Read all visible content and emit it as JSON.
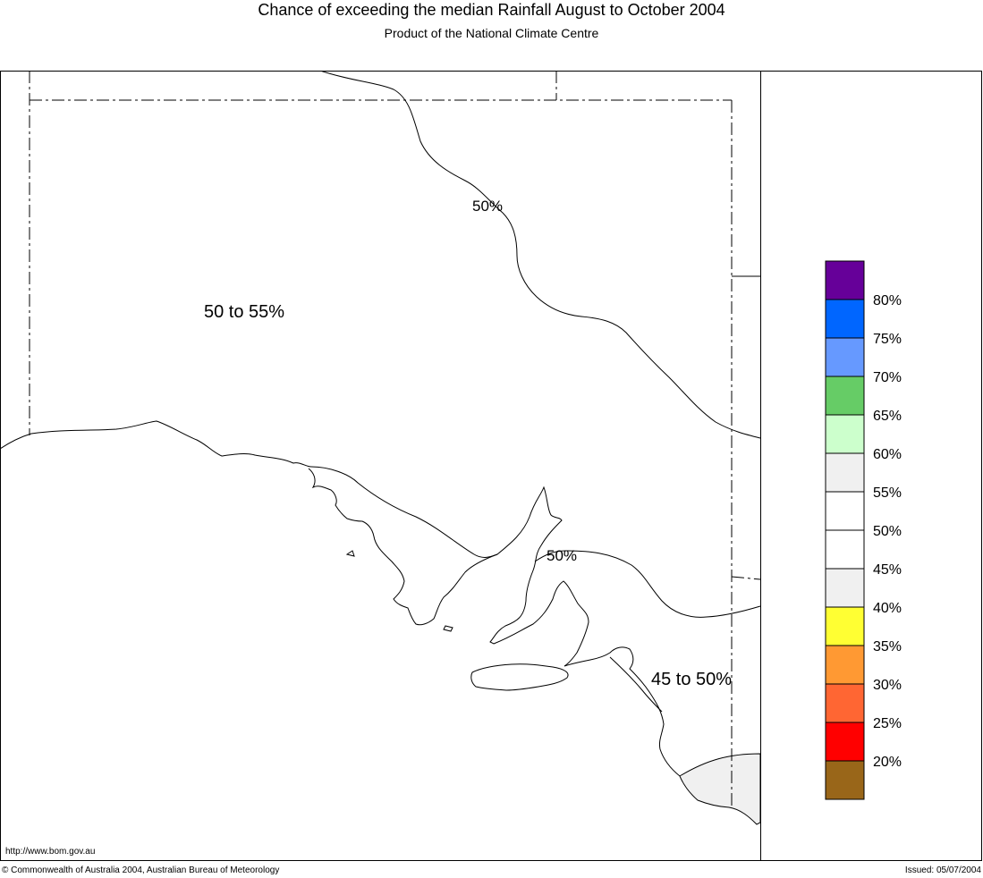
{
  "header": {
    "title": "Chance of exceeding the median Rainfall August to October 2004",
    "subtitle": "Product of the National Climate Centre"
  },
  "map": {
    "region_labels": [
      {
        "id": "north-west",
        "text": "50 to 55%"
      },
      {
        "id": "south-east",
        "text": "45 to 50%"
      }
    ],
    "contour_labels": [
      {
        "id": "upper",
        "text": "50%"
      },
      {
        "id": "gulf",
        "text": "50%"
      }
    ]
  },
  "legend": {
    "items": [
      {
        "color": "#660099",
        "label": "80%"
      },
      {
        "color": "#0066ff",
        "label": "75%"
      },
      {
        "color": "#6699ff",
        "label": "70%"
      },
      {
        "color": "#66cc66",
        "label": "65%"
      },
      {
        "color": "#ccffcc",
        "label": "60%"
      },
      {
        "color": "#f0f0f0",
        "label": "55%"
      },
      {
        "color": "#ffffff",
        "label": "50%"
      },
      {
        "color": "#ffffff",
        "label": "45%"
      },
      {
        "color": "#f0f0f0",
        "label": "40%"
      },
      {
        "color": "#ffff33",
        "label": "35%"
      },
      {
        "color": "#ff9933",
        "label": "30%"
      },
      {
        "color": "#ff6633",
        "label": "25%"
      },
      {
        "color": "#ff0000",
        "label": "20%"
      },
      {
        "color": "#996619",
        "label": ""
      }
    ]
  },
  "footer": {
    "url": "http://www.bom.gov.au",
    "copyright": "© Commonwealth of Australia 2004, Australian Bureau of Meteorology",
    "issued": "Issued: 05/07/2004"
  }
}
